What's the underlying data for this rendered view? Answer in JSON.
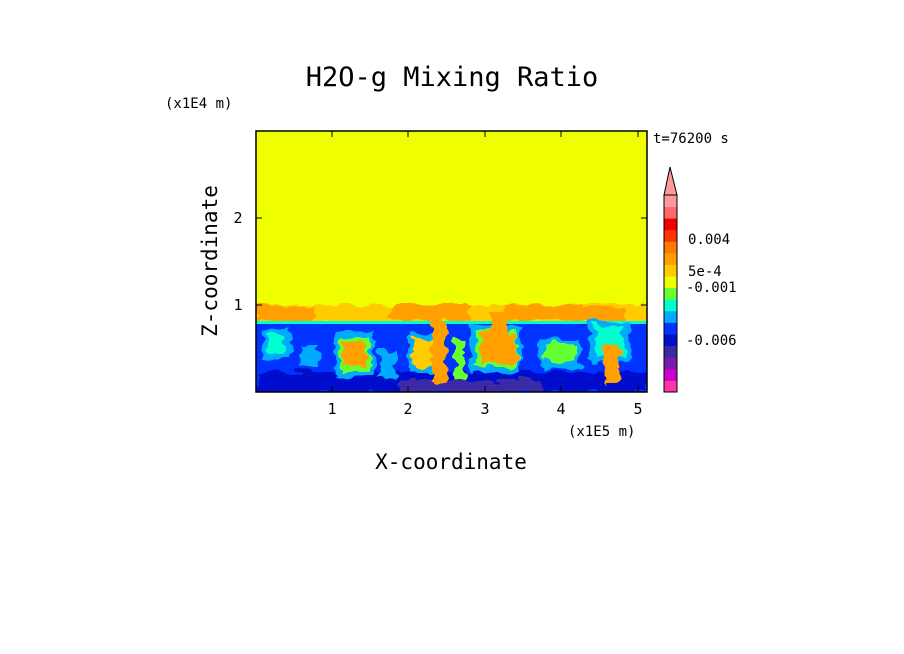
{
  "chart_data": {
    "type": "heatmap",
    "title": "H2O-g Mixing Ratio",
    "xlabel": "X-coordinate",
    "ylabel": "Z-coordinate",
    "x_scale_label": "(x1E5 m)",
    "y_scale_label": "(x1E4 m)",
    "time_label": "t=76200 s",
    "xlim": [
      0,
      5.12
    ],
    "ylim": [
      0,
      3.0
    ],
    "x_ticks": [
      1,
      2,
      3,
      4,
      5
    ],
    "y_ticks": [
      1,
      2
    ],
    "layers": {
      "upper_uniform": {
        "z_from": 0.82,
        "z_to": 3.0,
        "color": "#f0ff00"
      },
      "interface_z": 0.82,
      "lower_base_color": "#0033ff"
    },
    "colorbar": {
      "colors": [
        "#ff33aa",
        "#cc00cc",
        "#7a1aa8",
        "#3a2aa6",
        "#0011cc",
        "#0033ff",
        "#00aaff",
        "#00ffcc",
        "#66ff33",
        "#f0ff00",
        "#ffcc00",
        "#ffa000",
        "#ff7a00",
        "#ff3300",
        "#ee0000",
        "#ff6a6a",
        "#ff9999"
      ],
      "labels": [
        "0.004",
        "5e-4",
        "-0.001",
        "-0.006"
      ],
      "extend": "max"
    }
  }
}
